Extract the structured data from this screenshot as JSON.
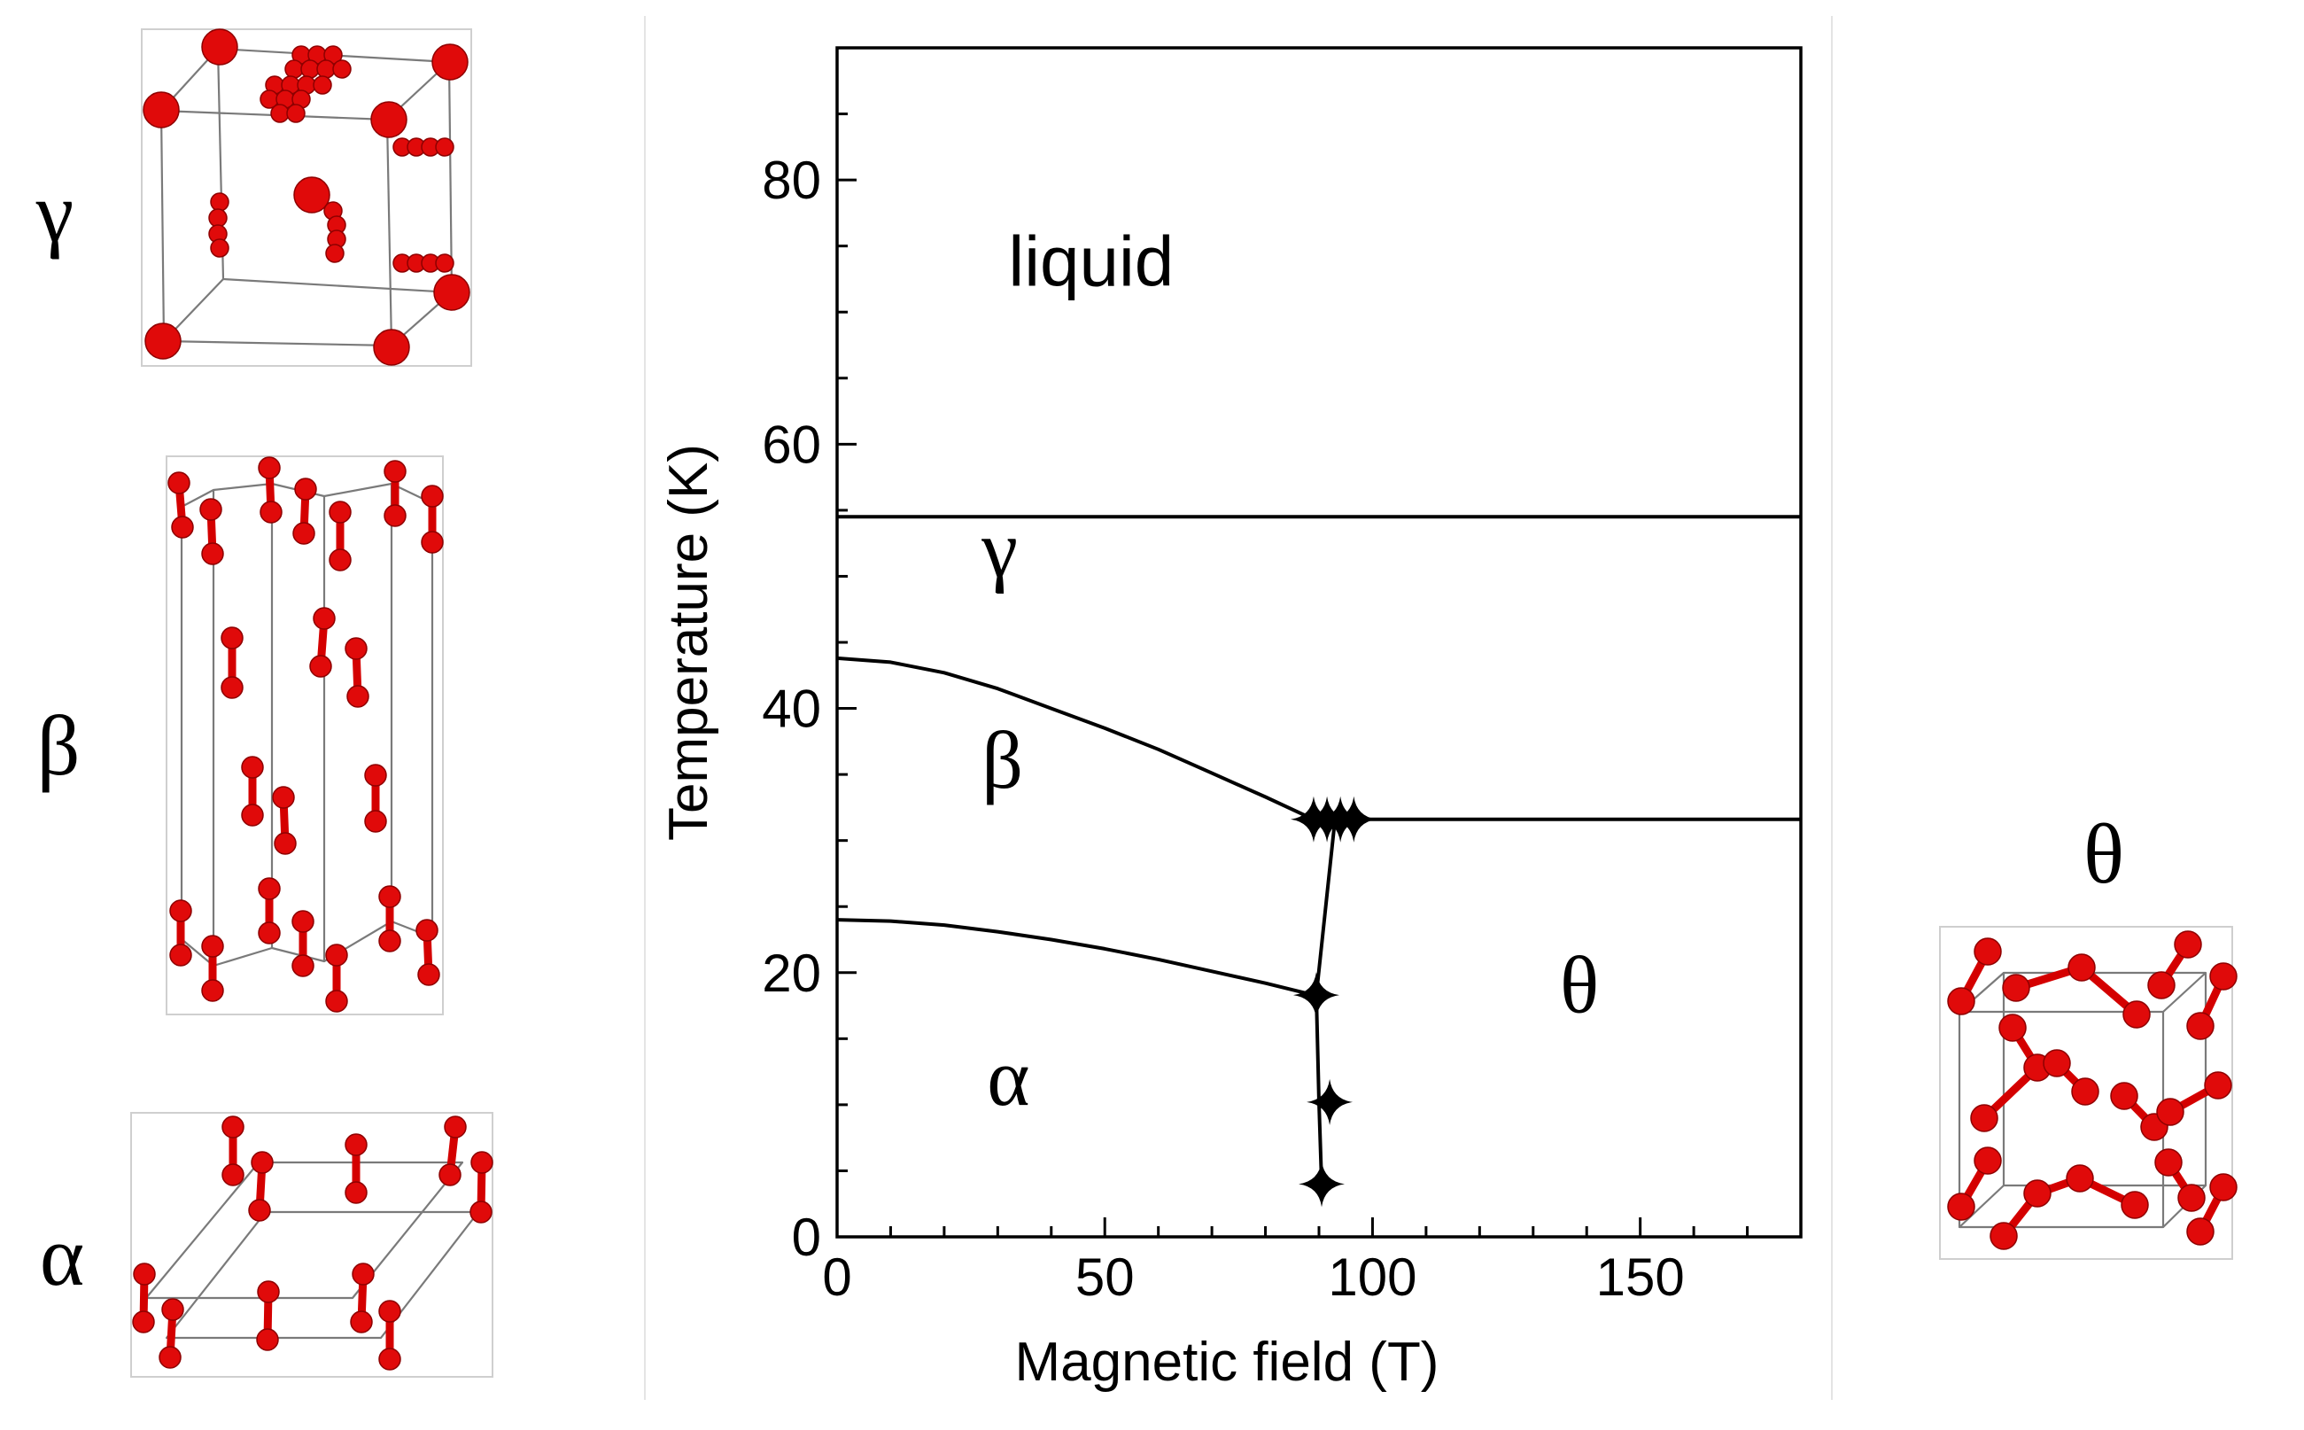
{
  "panels": {
    "gamma_label": "γ",
    "beta_label": "β",
    "alpha_label": "α",
    "theta_label": "θ",
    "atom_color": "#e00a0a",
    "cell_edge_color": "#7a7a7a"
  },
  "chart_data": {
    "type": "line",
    "title": "",
    "xlabel": "Magnetic field (T)",
    "ylabel": "Temperature (K)",
    "xlim": [
      0,
      180
    ],
    "ylim": [
      0,
      90
    ],
    "x_ticks": [
      0,
      50,
      100,
      150
    ],
    "y_ticks": [
      0,
      20,
      40,
      60,
      80
    ],
    "x_minor_step": 10,
    "y_minor_step": 5,
    "grid": false,
    "series": [
      {
        "x": [
          0,
          180
        ],
        "y": [
          54.5,
          54.5
        ]
      },
      {
        "x": [
          0,
          10,
          20,
          30,
          40,
          50,
          60,
          70,
          80,
          89
        ],
        "y": [
          43.8,
          43.5,
          42.7,
          41.5,
          40.0,
          38.5,
          36.9,
          35.1,
          33.3,
          31.6
        ]
      },
      {
        "x": [
          89,
          100,
          180
        ],
        "y": [
          31.6,
          31.6,
          31.6
        ]
      },
      {
        "x": [
          0,
          10,
          20,
          30,
          40,
          50,
          60,
          70,
          80,
          89
        ],
        "y": [
          24.0,
          23.9,
          23.6,
          23.1,
          22.5,
          21.8,
          21.0,
          20.1,
          19.2,
          18.3
        ]
      },
      {
        "x": [
          93,
          89.5,
          90,
          90.5
        ],
        "y": [
          31.6,
          18.3,
          10.2,
          4.0
        ]
      }
    ],
    "markers": [
      {
        "x": 89,
        "y": 31.6
      },
      {
        "x": 91.5,
        "y": 31.6
      },
      {
        "x": 94,
        "y": 31.6
      },
      {
        "x": 96.5,
        "y": 31.6
      },
      {
        "x": 89.5,
        "y": 18.3
      },
      {
        "x": 92,
        "y": 10.2
      },
      {
        "x": 90.5,
        "y": 4.0
      }
    ],
    "annotations": [
      {
        "text": "liquid",
        "x": 32,
        "y": 72
      },
      {
        "text": "γ",
        "x": 27,
        "y": 50
      },
      {
        "text": "β",
        "x": 27,
        "y": 34
      },
      {
        "text": "α",
        "x": 28,
        "y": 10
      },
      {
        "text": "θ",
        "x": 135,
        "y": 17
      }
    ]
  }
}
